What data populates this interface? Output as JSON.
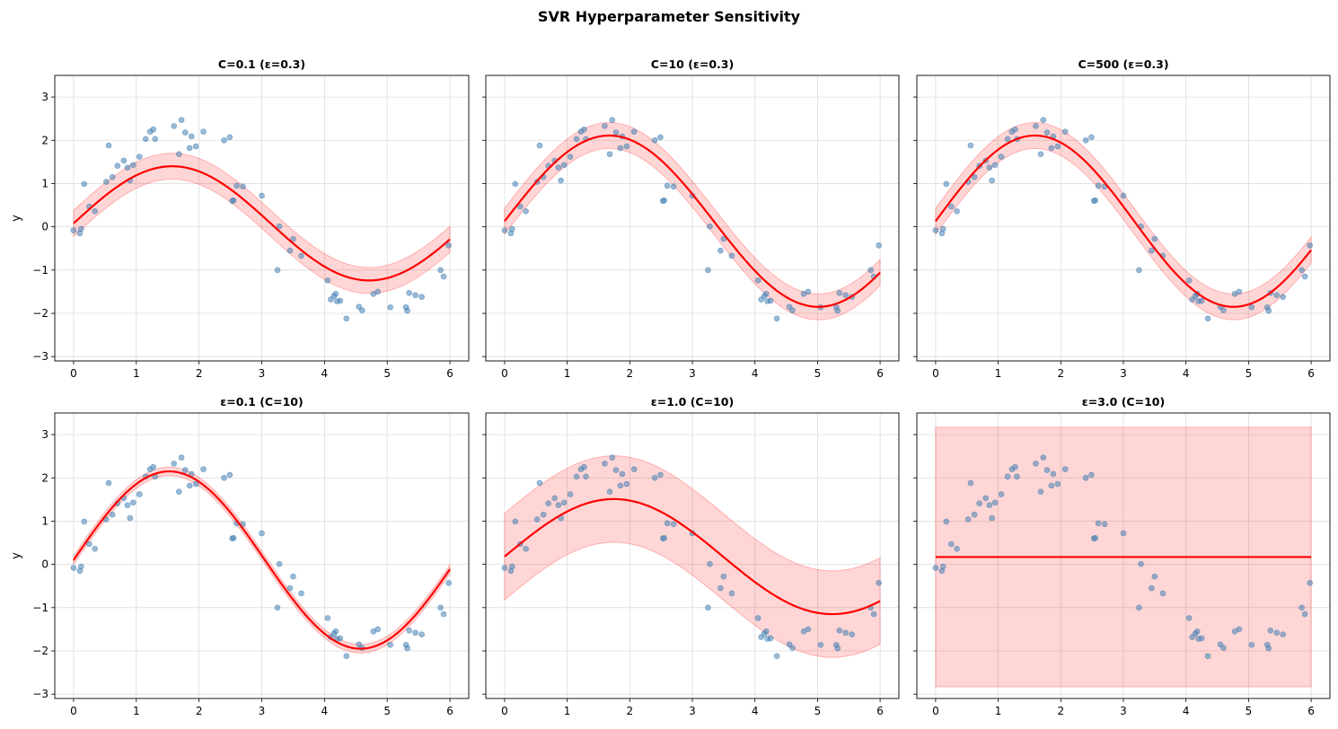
{
  "figure_title": "SVR Hyperparameter Sensitivity",
  "colors": {
    "points": "#4682b4",
    "points_stroke": "#4682b4",
    "fit_line": "#ff0000",
    "band_fill": "#ff0000",
    "grid": "#dcdcdc"
  },
  "chart_data": [
    {
      "type": "scatter",
      "title": "C=0.1  (ε=0.3)",
      "ylabel": "y",
      "epsilon": 0.3,
      "fit": {
        "intercept": 0.08,
        "amplitude": 1.32,
        "freq": 1.0
      },
      "xlim": [
        -0.3,
        6.3
      ],
      "ylim": [
        -3.1,
        3.5
      ],
      "xticks": [
        0,
        1,
        2,
        3,
        4,
        5,
        6
      ],
      "yticks": [
        -3,
        -2,
        -1,
        0,
        1,
        2,
        3
      ]
    },
    {
      "type": "scatter",
      "title": "C=10  (ε=0.3)",
      "ylabel": "",
      "epsilon": 0.3,
      "fit": {
        "intercept": 0.13,
        "amplitude": 1.98,
        "freq": 0.94
      },
      "xlim": [
        -0.3,
        6.3
      ],
      "ylim": [
        -3.1,
        3.5
      ],
      "xticks": [
        0,
        1,
        2,
        3,
        4,
        5,
        6
      ],
      "yticks": [
        -3,
        -2,
        -1,
        0,
        1,
        2,
        3
      ]
    },
    {
      "type": "scatter",
      "title": "C=500  (ε=0.3)",
      "ylabel": "",
      "epsilon": 0.3,
      "fit": {
        "intercept": 0.13,
        "amplitude": 1.98,
        "freq": 0.99
      },
      "xlim": [
        -0.3,
        6.3
      ],
      "ylim": [
        -3.1,
        3.5
      ],
      "xticks": [
        0,
        1,
        2,
        3,
        4,
        5,
        6
      ],
      "yticks": [
        -3,
        -2,
        -1,
        0,
        1,
        2,
        3
      ]
    },
    {
      "type": "scatter",
      "title": "ε=0.1  (C=10)",
      "ylabel": "y",
      "epsilon": 0.1,
      "fit": {
        "intercept": 0.1,
        "amplitude": 2.05,
        "freq": 1.03
      },
      "xlim": [
        -0.3,
        6.3
      ],
      "ylim": [
        -3.1,
        3.5
      ],
      "xticks": [
        0,
        1,
        2,
        3,
        4,
        5,
        6
      ],
      "yticks": [
        -3,
        -2,
        -1,
        0,
        1,
        2,
        3
      ]
    },
    {
      "type": "scatter",
      "title": "ε=1.0  (C=10)",
      "ylabel": "",
      "epsilon": 1.0,
      "fit": {
        "intercept": 0.18,
        "amplitude": 1.33,
        "freq": 0.9
      },
      "xlim": [
        -0.3,
        6.3
      ],
      "ylim": [
        -3.1,
        3.5
      ],
      "xticks": [
        0,
        1,
        2,
        3,
        4,
        5,
        6
      ],
      "yticks": [
        -3,
        -2,
        -1,
        0,
        1,
        2,
        3
      ]
    },
    {
      "type": "scatter",
      "title": "ε=3.0  (C=10)",
      "ylabel": "",
      "epsilon": 3.0,
      "fit": {
        "intercept": 0.17,
        "amplitude": 0.0,
        "freq": 1.0
      },
      "xlim": [
        -0.3,
        6.3
      ],
      "ylim": [
        -3.1,
        3.5
      ],
      "xticks": [
        0,
        1,
        2,
        3,
        4,
        5,
        6
      ],
      "yticks": [
        -3,
        -2,
        -1,
        0,
        1,
        2,
        3
      ]
    }
  ],
  "scatter_points": [
    [
      0.0,
      -0.08
    ],
    [
      0.1,
      -0.15
    ],
    [
      0.12,
      -0.05
    ],
    [
      0.17,
      0.99
    ],
    [
      0.25,
      0.47
    ],
    [
      0.34,
      0.36
    ],
    [
      0.52,
      1.04
    ],
    [
      0.56,
      1.88
    ],
    [
      0.62,
      1.15
    ],
    [
      0.7,
      1.41
    ],
    [
      0.8,
      1.53
    ],
    [
      0.86,
      1.37
    ],
    [
      0.9,
      1.07
    ],
    [
      0.95,
      1.43
    ],
    [
      1.05,
      1.62
    ],
    [
      1.15,
      2.03
    ],
    [
      1.22,
      2.2
    ],
    [
      1.27,
      2.25
    ],
    [
      1.3,
      2.03
    ],
    [
      1.6,
      2.33
    ],
    [
      1.68,
      1.68
    ],
    [
      1.72,
      2.47
    ],
    [
      1.78,
      2.18
    ],
    [
      1.85,
      1.82
    ],
    [
      1.88,
      2.09
    ],
    [
      1.95,
      1.86
    ],
    [
      2.07,
      2.2
    ],
    [
      2.4,
      2.0
    ],
    [
      2.49,
      2.07
    ],
    [
      2.53,
      0.6
    ],
    [
      2.55,
      0.61
    ],
    [
      2.6,
      0.95
    ],
    [
      2.7,
      0.93
    ],
    [
      3.0,
      0.72
    ],
    [
      3.25,
      -1.0
    ],
    [
      3.28,
      0.01
    ],
    [
      3.45,
      -0.55
    ],
    [
      3.5,
      -0.28
    ],
    [
      3.63,
      -0.67
    ],
    [
      4.05,
      -1.24
    ],
    [
      4.1,
      -1.68
    ],
    [
      4.15,
      -1.6
    ],
    [
      4.18,
      -1.55
    ],
    [
      4.2,
      -1.72
    ],
    [
      4.25,
      -1.71
    ],
    [
      4.35,
      -2.12
    ],
    [
      4.55,
      -1.85
    ],
    [
      4.6,
      -1.93
    ],
    [
      4.78,
      -1.55
    ],
    [
      4.85,
      -1.5
    ],
    [
      5.05,
      -1.86
    ],
    [
      5.3,
      -1.86
    ],
    [
      5.32,
      -1.94
    ],
    [
      5.35,
      -1.53
    ],
    [
      5.45,
      -1.58
    ],
    [
      5.55,
      -1.62
    ],
    [
      5.85,
      -1.0
    ],
    [
      5.9,
      -1.15
    ],
    [
      5.98,
      -0.43
    ]
  ]
}
